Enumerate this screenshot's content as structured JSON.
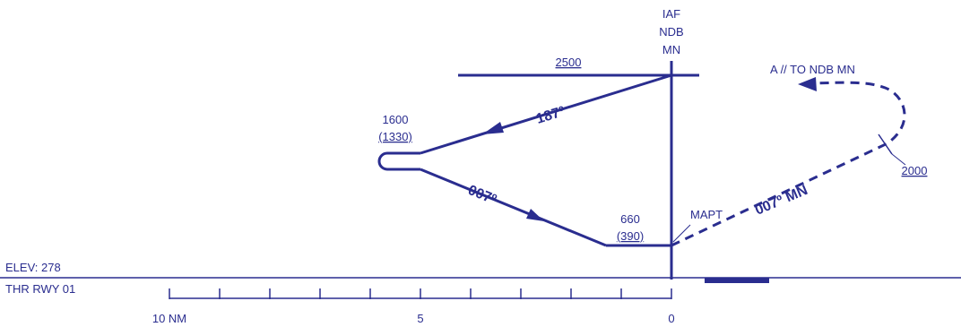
{
  "profile": {
    "fix": {
      "line1": "IAF",
      "line2": "NDB",
      "line3": "MN"
    },
    "altitude_2500": "2500",
    "course_outbound": "187º",
    "course_inbound": "007º",
    "procedure_turn_alt": "1600",
    "procedure_turn_height": "(1330)",
    "mda_alt": "660",
    "mda_height": "(390)",
    "mapt": "MAPT",
    "missed_course": "007º MN",
    "missed_alt": "2000",
    "missed_hold": "A // TO NDB MN",
    "elevation": "ELEV: 278",
    "threshold": "THR RWY 01",
    "scale": {
      "left": "10 NM",
      "mid": "5",
      "right": "0",
      "ticks": 10
    },
    "colors": {
      "ink": "#2a2d8f"
    }
  }
}
